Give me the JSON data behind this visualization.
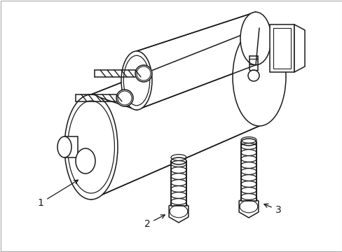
{
  "background_color": "#ffffff",
  "line_color": "#1a1a1a",
  "line_width": 1.1,
  "figsize": [
    4.89,
    3.6
  ],
  "dpi": 100,
  "label_fontsize": 10,
  "border_color": "#888888",
  "border_lw": 0.8
}
